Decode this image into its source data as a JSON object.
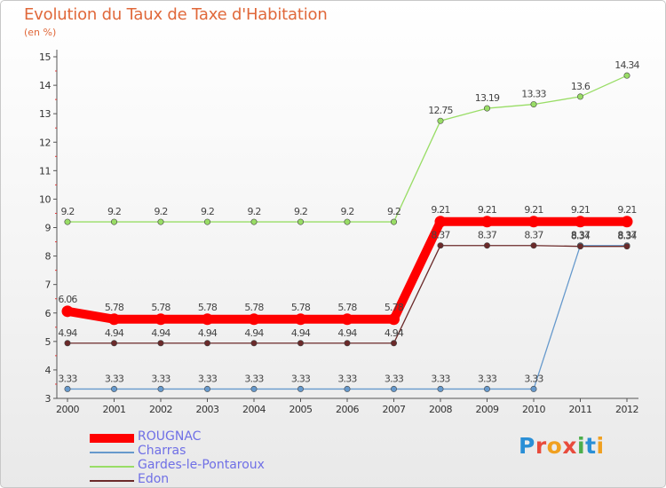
{
  "title": "Evolution du Taux de Taxe d'Habitation",
  "subtitle": "(en %)",
  "logo": {
    "text": "Proxiti",
    "colors": [
      "#2a8fd6",
      "#e84b3c",
      "#f0a020",
      "#e84b3c",
      "#4cae4c",
      "#2a8fd6",
      "#f0a020"
    ]
  },
  "chart_data": {
    "type": "line",
    "title": "Evolution du Taux de Taxe d'Habitation",
    "ylabel": "(en %)",
    "xlabel": "",
    "categories": [
      "2000",
      "2001",
      "2002",
      "2003",
      "2004",
      "2005",
      "2006",
      "2007",
      "2008",
      "2009",
      "2010",
      "2011",
      "2012"
    ],
    "ylim": [
      3,
      15
    ],
    "yticks": [
      3,
      4,
      5,
      6,
      7,
      8,
      9,
      10,
      11,
      12,
      13,
      14,
      15
    ],
    "grid": false,
    "legend_position": "bottom-left",
    "series": [
      {
        "name": "ROUGNAC",
        "color": "#ff0000",
        "emphasis": true,
        "values": [
          6.06,
          5.78,
          5.78,
          5.78,
          5.78,
          5.78,
          5.78,
          5.78,
          9.21,
          9.21,
          9.21,
          9.21,
          9.21
        ],
        "labels": [
          "6.06",
          "5.78",
          "5.78",
          "5.78",
          "5.78",
          "5.78",
          "5.78",
          "5.78",
          "9.21",
          "9.21",
          "9.21",
          "9.21",
          "9.21"
        ]
      },
      {
        "name": "Charras",
        "color": "#6699cc",
        "emphasis": false,
        "values": [
          3.33,
          3.33,
          3.33,
          3.33,
          3.33,
          3.33,
          3.33,
          3.33,
          3.33,
          3.33,
          3.33,
          8.37,
          8.37
        ],
        "labels": [
          "3.33",
          "3.33",
          "3.33",
          "3.33",
          "3.33",
          "3.33",
          "3.33",
          "3.33",
          "3.33",
          "3.33",
          "3.33",
          "8.37",
          "8.37"
        ]
      },
      {
        "name": "Gardes-le-Pontaroux",
        "color": "#99dd66",
        "emphasis": false,
        "values": [
          9.2,
          9.2,
          9.2,
          9.2,
          9.2,
          9.2,
          9.2,
          9.2,
          12.75,
          13.19,
          13.33,
          13.6,
          14.34
        ],
        "labels": [
          "9.2",
          "9.2",
          "9.2",
          "9.2",
          "9.2",
          "9.2",
          "9.2",
          "9.2",
          "12.75",
          "13.19",
          "13.33",
          "13.6",
          "14.34"
        ]
      },
      {
        "name": "Edon",
        "color": "#6b2a2a",
        "emphasis": false,
        "values": [
          4.94,
          4.94,
          4.94,
          4.94,
          4.94,
          4.94,
          4.94,
          4.94,
          8.37,
          8.37,
          8.37,
          8.34,
          8.34
        ],
        "labels": [
          "4.94",
          "4.94",
          "4.94",
          "4.94",
          "4.94",
          "4.94",
          "4.94",
          "4.94",
          "8.37",
          "8.37",
          "8.37",
          "8.34",
          "8.34"
        ]
      }
    ]
  }
}
